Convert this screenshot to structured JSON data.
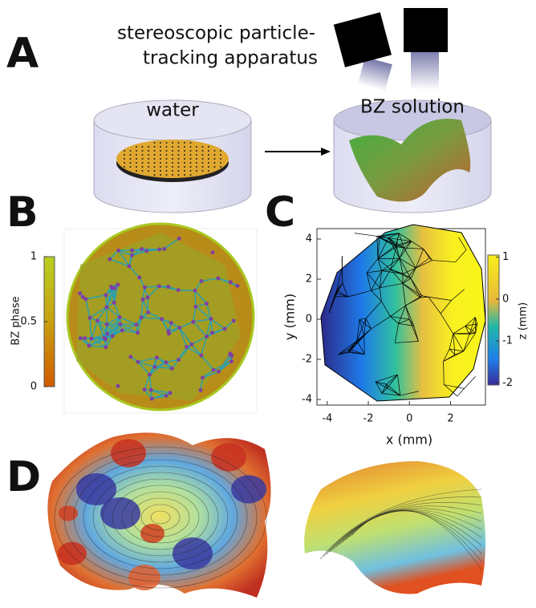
{
  "panels": {
    "a": {
      "label": "A",
      "caption": [
        "stereoscopic particle-",
        "tracking apparatus"
      ],
      "left": "water",
      "right": "BZ solution"
    },
    "b": {
      "label": "B",
      "colorbar": {
        "title": "BZ phase",
        "lim": [
          0,
          1
        ],
        "ticks": [
          1,
          0.5,
          0
        ]
      }
    },
    "c": {
      "label": "C",
      "xlabel": "x (mm)",
      "ylabel": "y (mm)",
      "xlim": [
        -4.5,
        3.7
      ],
      "ylim": [
        -4.28,
        4.52
      ],
      "xticks": [
        -4,
        -2,
        0,
        2
      ],
      "yticks": [
        4,
        2,
        0,
        -2,
        -4
      ],
      "colorbar": {
        "title": "z (mm)",
        "lim": [
          -2.05,
          1.05
        ],
        "ticks": [
          1,
          0,
          -1,
          -2
        ]
      }
    },
    "d": {
      "label": "D"
    }
  }
}
